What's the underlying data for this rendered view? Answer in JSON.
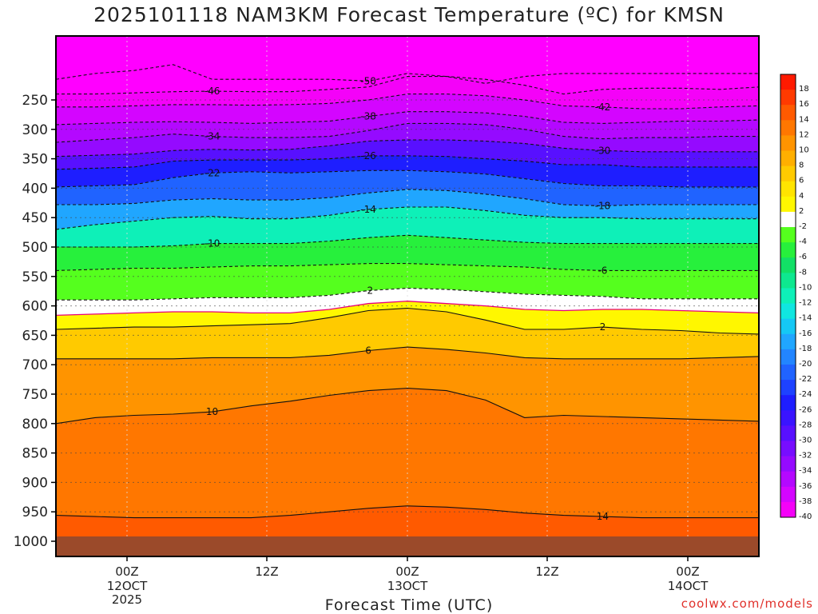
{
  "chart_data": {
    "type": "heatmap",
    "title": "2025101118 NAM3KM Forecast Temperature (ºC) for KMSN",
    "xlabel": "Forecast Time (UTC)",
    "ylabel": "",
    "watermark": "coolwx.com/models",
    "y_axis": {
      "scale": "pressure (hPa), inverted",
      "ticks": [
        250,
        300,
        350,
        400,
        450,
        500,
        550,
        600,
        650,
        700,
        750,
        800,
        850,
        900,
        950,
        1000
      ]
    },
    "x_axis": {
      "ticks": [
        {
          "label": "00Z",
          "sub": [
            "12OCT",
            "2025"
          ]
        },
        {
          "label": "12Z",
          "sub": []
        },
        {
          "label": "00Z",
          "sub": [
            "13OCT"
          ]
        },
        {
          "label": "12Z",
          "sub": []
        },
        {
          "label": "00Z",
          "sub": [
            "14OCT"
          ]
        }
      ]
    },
    "colorbar": {
      "labels": [
        "18",
        "16",
        "14",
        "12",
        "10",
        "8",
        "6",
        "4",
        "2",
        "-2",
        "-4",
        "-6",
        "-8",
        "-10",
        "-12",
        "-14",
        "-16",
        "-18",
        "-20",
        "-22",
        "-24",
        "-26",
        "-28",
        "-30",
        "-32",
        "-34",
        "-36",
        "-38",
        "-40"
      ],
      "colors": [
        "#ff1a00",
        "#ff3a00",
        "#ff5a00",
        "#ff7700",
        "#ff9400",
        "#ffaf00",
        "#ffca00",
        "#ffe400",
        "#fff700",
        "#ffffff",
        "#55ff1e",
        "#27f03c",
        "#12e066",
        "#0ee88f",
        "#0ef0b8",
        "#10e6e0",
        "#15c8f5",
        "#20a6ff",
        "#2285ff",
        "#2063ff",
        "#1e42ff",
        "#1e1eff",
        "#3a14ff",
        "#5810ff",
        "#770dff",
        "#950aff",
        "#b408ff",
        "#d405ff",
        "#f402f8"
      ]
    },
    "contours": {
      "isotherms": [
        -50,
        -46,
        -42,
        -38,
        -34,
        -30,
        -26,
        -22,
        -18,
        -14,
        -10,
        -6,
        -2,
        0,
        2,
        6,
        10,
        14
      ],
      "labeled_values": [
        "-50",
        "-46",
        "-42",
        "-38",
        "-34",
        "-30",
        "-26",
        "-22",
        "-18",
        "-14",
        "-10",
        "-6",
        "-2",
        "2",
        "6",
        "10",
        "14"
      ],
      "series": [
        {
          "name": "-50",
          "p": [
            215,
            205,
            200,
            190,
            215,
            215,
            215,
            215,
            218,
            205,
            210,
            222,
            210,
            205,
            205,
            205,
            205,
            205,
            205
          ]
        },
        {
          "name": "-46",
          "p": [
            240,
            240,
            238,
            236,
            235,
            236,
            236,
            232,
            228,
            210,
            210,
            215,
            225,
            240,
            232,
            230,
            230,
            232,
            228
          ]
        },
        {
          "name": "-42",
          "p": [
            262,
            262,
            260,
            258,
            258,
            259,
            258,
            256,
            250,
            240,
            240,
            243,
            250,
            260,
            262,
            265,
            265,
            262,
            260
          ]
        },
        {
          "name": "-38",
          "p": [
            292,
            290,
            288,
            287,
            288,
            290,
            288,
            286,
            278,
            270,
            270,
            272,
            278,
            288,
            290,
            288,
            286,
            286,
            284
          ]
        },
        {
          "name": "-34",
          "p": [
            322,
            318,
            314,
            308,
            312,
            314,
            314,
            312,
            302,
            290,
            290,
            292,
            300,
            312,
            316,
            314,
            314,
            312,
            312
          ]
        },
        {
          "name": "-30",
          "p": [
            346,
            344,
            342,
            336,
            334,
            335,
            334,
            328,
            320,
            318,
            318,
            320,
            324,
            332,
            336,
            338,
            338,
            338,
            338
          ]
        },
        {
          "name": "-26",
          "p": [
            368,
            366,
            364,
            354,
            352,
            352,
            352,
            350,
            345,
            345,
            346,
            350,
            354,
            360,
            360,
            364,
            364,
            364,
            364
          ]
        },
        {
          "name": "-22",
          "p": [
            398,
            396,
            394,
            382,
            374,
            372,
            374,
            372,
            370,
            370,
            372,
            376,
            384,
            392,
            396,
            396,
            398,
            398,
            398
          ]
        },
        {
          "name": "-18",
          "p": [
            428,
            428,
            426,
            420,
            418,
            420,
            420,
            416,
            408,
            402,
            404,
            410,
            418,
            428,
            430,
            428,
            428,
            428,
            428
          ]
        },
        {
          "name": "-14",
          "p": [
            470,
            462,
            456,
            450,
            448,
            452,
            452,
            446,
            436,
            432,
            432,
            438,
            446,
            450,
            450,
            452,
            452,
            452,
            452
          ]
        },
        {
          "name": "-10",
          "p": [
            500,
            500,
            500,
            498,
            494,
            494,
            494,
            490,
            484,
            480,
            484,
            488,
            492,
            494,
            494,
            494,
            494,
            494,
            494
          ]
        },
        {
          "name": "-6",
          "p": [
            540,
            538,
            536,
            536,
            534,
            532,
            532,
            530,
            528,
            528,
            530,
            532,
            534,
            538,
            540,
            540,
            540,
            540,
            540
          ]
        },
        {
          "name": "-2",
          "p": [
            590,
            590,
            590,
            588,
            586,
            586,
            586,
            582,
            574,
            570,
            572,
            576,
            580,
            582,
            584,
            588,
            588,
            588,
            588
          ]
        },
        {
          "name": "0",
          "p": [
            616,
            614,
            612,
            610,
            610,
            612,
            612,
            606,
            596,
            592,
            596,
            600,
            606,
            608,
            606,
            606,
            608,
            610,
            612
          ]
        },
        {
          "name": "2",
          "p": [
            640,
            638,
            636,
            636,
            634,
            632,
            630,
            620,
            608,
            604,
            610,
            624,
            640,
            640,
            636,
            640,
            642,
            646,
            648
          ]
        },
        {
          "name": "6",
          "p": [
            690,
            690,
            690,
            690,
            688,
            688,
            688,
            684,
            676,
            670,
            674,
            680,
            688,
            690,
            690,
            690,
            690,
            688,
            686
          ]
        },
        {
          "name": "10",
          "p": [
            800,
            790,
            786,
            784,
            780,
            770,
            762,
            752,
            744,
            740,
            744,
            760,
            790,
            786,
            788,
            790,
            792,
            794,
            796
          ]
        },
        {
          "name": "14",
          "p": [
            956,
            958,
            960,
            960,
            960,
            960,
            956,
            950,
            944,
            940,
            942,
            946,
            952,
            956,
            958,
            960,
            960,
            960,
            960
          ]
        }
      ]
    },
    "colors": {
      "ground": "#9b4a2a",
      "zero_line": "#e6007a",
      "grid": "#555555"
    }
  }
}
